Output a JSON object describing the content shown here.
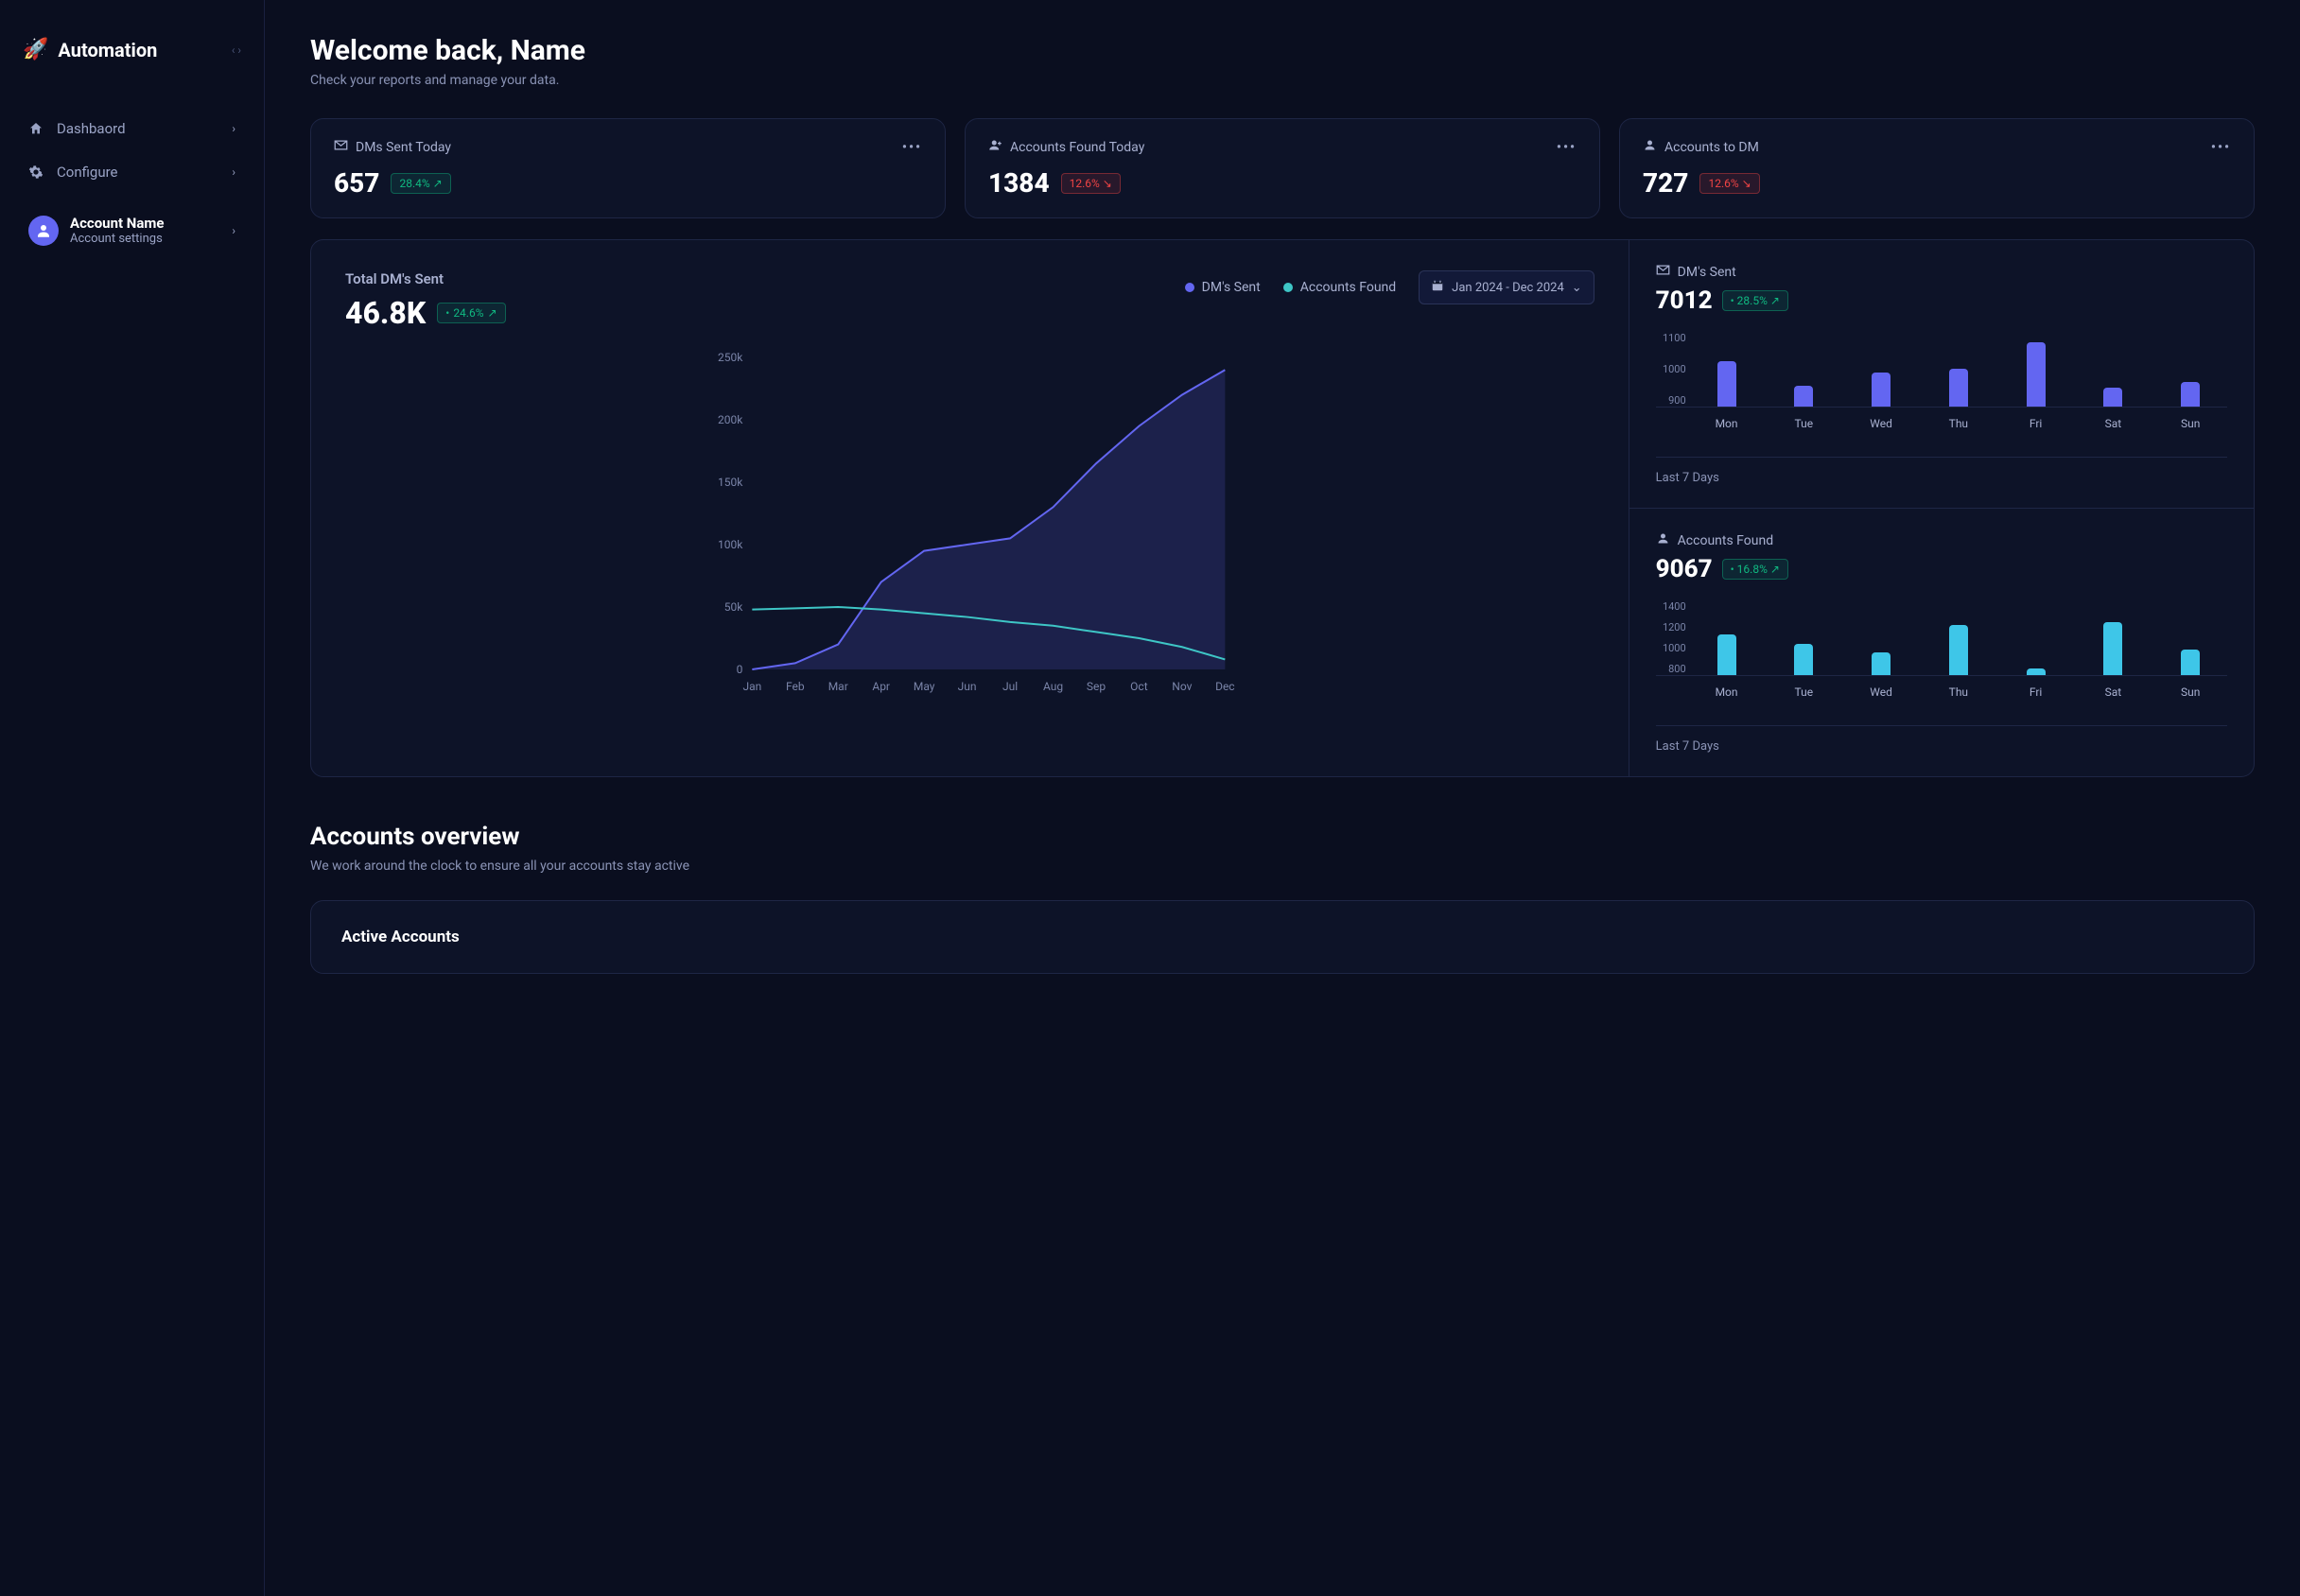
{
  "brand": {
    "name": "Automation"
  },
  "sidebar": {
    "items": [
      {
        "label": "Dashbaord",
        "icon": "home"
      },
      {
        "label": "Configure",
        "icon": "gear"
      }
    ],
    "account": {
      "name": "Account Name",
      "sub": "Account settings"
    }
  },
  "header": {
    "title": "Welcome back, Name",
    "subtitle": "Check your reports and manage your data."
  },
  "stats": [
    {
      "icon": "envelope",
      "label": "DMs Sent Today",
      "value": "657",
      "delta": "28.4%",
      "direction": "up",
      "color": "green"
    },
    {
      "icon": "user-plus",
      "label": "Accounts Found Today",
      "value": "1384",
      "delta": "12.6%",
      "direction": "down",
      "color": "red"
    },
    {
      "icon": "user",
      "label": "Accounts to DM",
      "value": "727",
      "delta": "12.6%",
      "direction": "down",
      "color": "red"
    }
  ],
  "main_chart": {
    "title": "Total DM's Sent",
    "big_value": "46.8K",
    "delta": "24.6%",
    "delta_color": "green",
    "legend": [
      {
        "label": "DM's Sent",
        "color": "#6366f1"
      },
      {
        "label": "Accounts Found",
        "color": "#3ec6c6"
      }
    ],
    "date_range": "Jan 2024 - Dec 2024",
    "type": "area",
    "x_categories": [
      "Jan",
      "Feb",
      "Mar",
      "Apr",
      "May",
      "Jun",
      "Jul",
      "Aug",
      "Sep",
      "Oct",
      "Nov",
      "Dec"
    ],
    "y_ticks": [
      0,
      50,
      100,
      150,
      200,
      250
    ],
    "y_unit": "k",
    "ylim": [
      0,
      250
    ],
    "series": [
      {
        "name": "DM's Sent",
        "color": "#6366f1",
        "fill": true,
        "values": [
          0,
          5,
          20,
          70,
          95,
          100,
          105,
          130,
          165,
          195,
          220,
          240
        ]
      },
      {
        "name": "Accounts Found",
        "color": "#3ec6c6",
        "fill": false,
        "values": [
          48,
          49,
          50,
          48,
          45,
          42,
          38,
          35,
          30,
          25,
          18,
          8
        ]
      }
    ],
    "background_color": "#0d1328",
    "grid_color": "#1e2645",
    "line_width": 2
  },
  "mini_charts": [
    {
      "icon": "envelope",
      "label": "DM's Sent",
      "value": "7012",
      "delta": "28.5%",
      "delta_color": "green",
      "type": "bar",
      "categories": [
        "Mon",
        "Tue",
        "Wed",
        "Thu",
        "Fri",
        "Sat",
        "Sun"
      ],
      "values": [
        1020,
        955,
        990,
        1000,
        1070,
        950,
        965
      ],
      "ylim": [
        900,
        1100
      ],
      "y_ticks": [
        900,
        1000,
        1100
      ],
      "bar_color": "#6366f1",
      "footer": "Last 7 Days"
    },
    {
      "icon": "user",
      "label": "Accounts Found",
      "value": "9067",
      "delta": "16.8%",
      "delta_color": "green",
      "type": "bar",
      "categories": [
        "Mon",
        "Tue",
        "Wed",
        "Thu",
        "Fri",
        "Sat",
        "Sun"
      ],
      "values": [
        1120,
        1050,
        980,
        1200,
        850,
        1220,
        1000
      ],
      "ylim": [
        800,
        1400
      ],
      "y_ticks": [
        800,
        1000,
        1200,
        1400
      ],
      "bar_color": "#3ec6e8",
      "footer": "Last 7 Days"
    }
  ],
  "accounts_section": {
    "title": "Accounts overview",
    "subtitle": "We work around the clock to ensure all your accounts stay active",
    "card_title": "Active Accounts"
  },
  "colors": {
    "bg": "#0a0e1f",
    "card_bg": "#0d1328",
    "border": "#1e2645",
    "text_muted": "#8a93b5"
  }
}
